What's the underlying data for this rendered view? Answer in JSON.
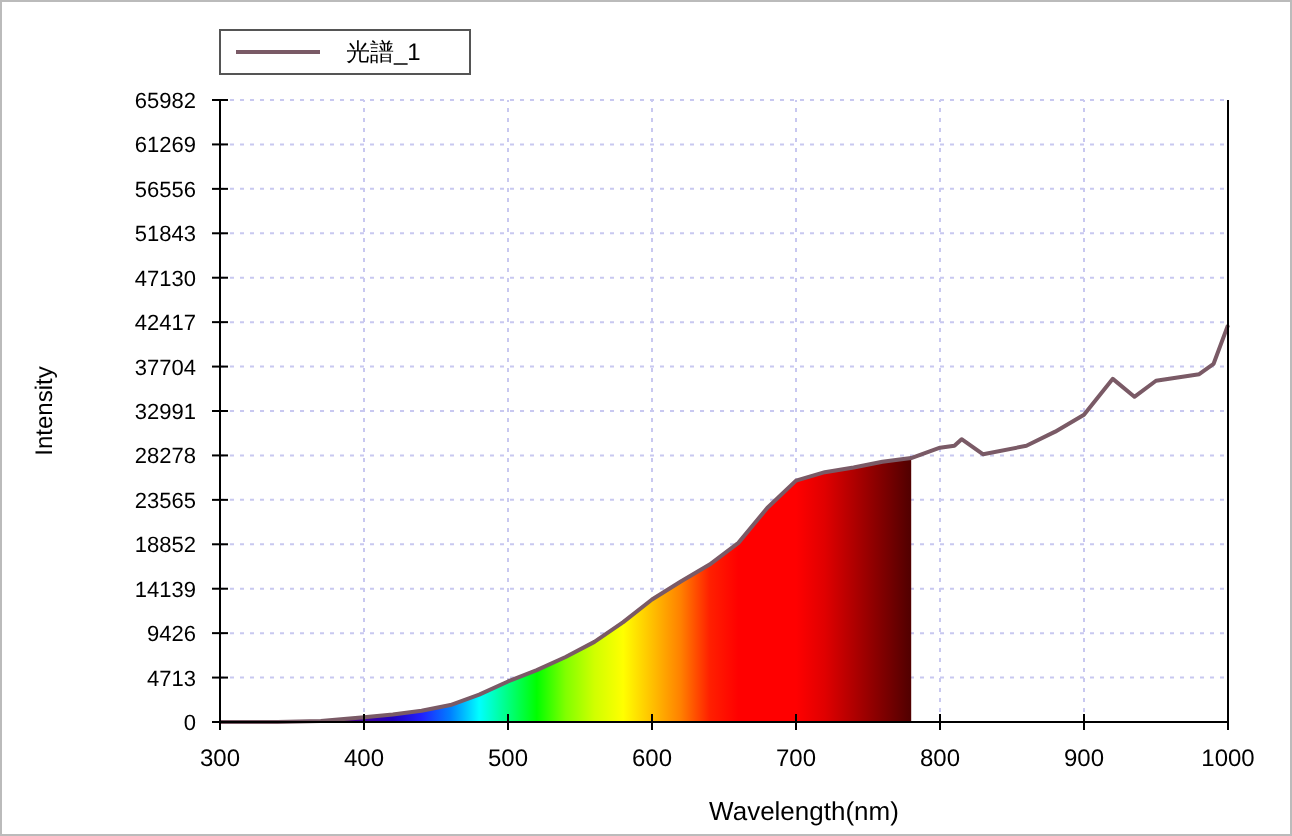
{
  "chart_data": {
    "type": "line",
    "xlabel": "Wavelength(nm)",
    "ylabel": "Intensity",
    "xlim": [
      300,
      1000
    ],
    "ylim": [
      0,
      65982
    ],
    "xticks": [
      300,
      400,
      500,
      600,
      700,
      800,
      900,
      1000
    ],
    "yticks": [
      0,
      4713,
      9426,
      14139,
      18852,
      23565,
      28278,
      32991,
      37704,
      42417,
      47130,
      51843,
      56556,
      61269,
      65982
    ],
    "grid": true,
    "legend": "top left",
    "series": [
      {
        "type": "area",
        "x": [
          380,
          400,
          420,
          440,
          460,
          480,
          500,
          520,
          540,
          560,
          580,
          600,
          620,
          640,
          660,
          680,
          700,
          720,
          740,
          760,
          780
        ],
        "values": [
          200,
          500,
          800,
          1200,
          1800,
          2900,
          4300,
          5500,
          6900,
          8500,
          10600,
          13000,
          14900,
          16700,
          19000,
          22700,
          25600,
          26500,
          27000,
          27600,
          28000
        ],
        "colors": [
          "#5a0080",
          "#3c00a0",
          "#2000c0",
          "#2020ff",
          "#0080ff",
          "#00ffff",
          "#00ff80",
          "#00ff00",
          "#80ff00",
          "#d0ff00",
          "#ffff00",
          "#ffc000",
          "#ff8000",
          "#ff2000",
          "#ff0000",
          "#ff0000",
          "#ff0000",
          "#e00000",
          "#b00000",
          "#800000",
          "#500000"
        ]
      },
      {
        "name": "光譜_1",
        "color": "#7a5a66",
        "x": [
          300,
          340,
          370,
          400,
          420,
          440,
          460,
          480,
          500,
          520,
          540,
          560,
          580,
          600,
          620,
          640,
          660,
          680,
          700,
          720,
          740,
          760,
          780,
          800,
          810,
          815,
          830,
          860,
          880,
          900,
          920,
          935,
          950,
          980,
          990,
          1000
        ],
        "values": [
          0,
          0,
          100,
          500,
          800,
          1200,
          1800,
          2900,
          4300,
          5500,
          6900,
          8500,
          10600,
          13000,
          14900,
          16700,
          19000,
          22700,
          25600,
          26500,
          27000,
          27600,
          28000,
          29100,
          29300,
          30000,
          28400,
          29300,
          30800,
          32600,
          36400,
          34500,
          36200,
          36900,
          38000,
          42100
        ]
      }
    ]
  }
}
